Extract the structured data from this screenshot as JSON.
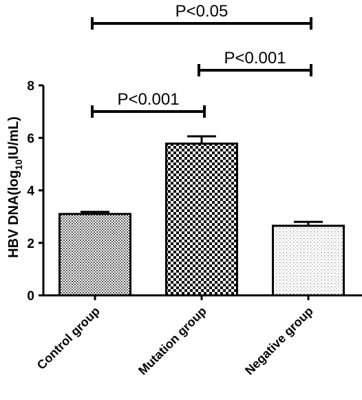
{
  "chart_data": {
    "type": "bar",
    "ylabel_prefix": "HBV DNA(log",
    "ylabel_sub": "10",
    "ylabel_suffix": "IU/mL)",
    "ylim": [
      0,
      8
    ],
    "yticks": [
      0,
      2,
      4,
      6,
      8
    ],
    "categories": [
      "Control group",
      "Mutation group",
      "Negative group"
    ],
    "values": [
      3.1,
      5.78,
      2.65
    ],
    "errors": [
      0.08,
      0.28,
      0.15
    ],
    "patterns": [
      "fine-dots",
      "checker",
      "sparse-dots"
    ],
    "grid": false,
    "comparisons": [
      {
        "from": 0,
        "to": 2,
        "label": "P<0.05"
      },
      {
        "from": 1,
        "to": 2,
        "label": "P<0.001"
      },
      {
        "from": 0,
        "to": 1,
        "label": "P<0.001"
      }
    ]
  }
}
